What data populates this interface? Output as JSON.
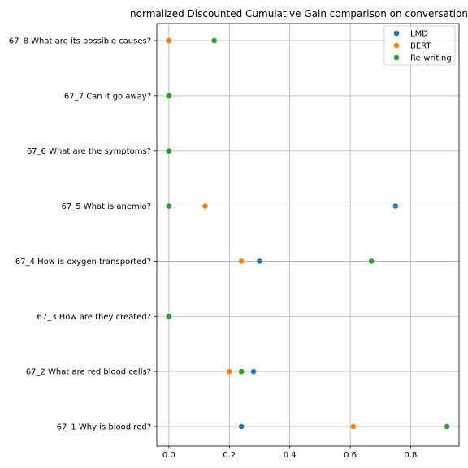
{
  "chart_data": {
    "type": "scatter",
    "title": "normalized Discounted Cumulative Gain comparison on conversation",
    "xlabel": "",
    "ylabel": "",
    "xlim": [
      -0.04,
      0.96
    ],
    "xticks": [
      "0.0",
      "0.2",
      "0.4",
      "0.6",
      "0.8"
    ],
    "grid": true,
    "legend_position": "top-right",
    "categories": [
      "67_1 Why is blood red?",
      "67_2 What are red blood cells?",
      "67_3 How are they created?",
      "67_4 How is oxygen transported?",
      "67_5 What is anemia?",
      "67_6 What are the symptoms?",
      "67_7 Can it go away?",
      "67_8 What are its possible causes?"
    ],
    "series": [
      {
        "name": "LMD",
        "color": "#1f77b4",
        "values": [
          0.24,
          0.28,
          0.0,
          0.3,
          0.75,
          0.0,
          0.0,
          0.0
        ]
      },
      {
        "name": "BERT",
        "color": "#ff7f0e",
        "values": [
          0.61,
          0.2,
          0.0,
          0.24,
          0.12,
          0.0,
          0.0,
          0.0
        ]
      },
      {
        "name": "Re-writing",
        "color": "#2ca02c",
        "values": [
          0.92,
          0.24,
          0.0,
          0.67,
          0.0,
          0.0,
          0.0,
          0.15
        ]
      }
    ]
  }
}
